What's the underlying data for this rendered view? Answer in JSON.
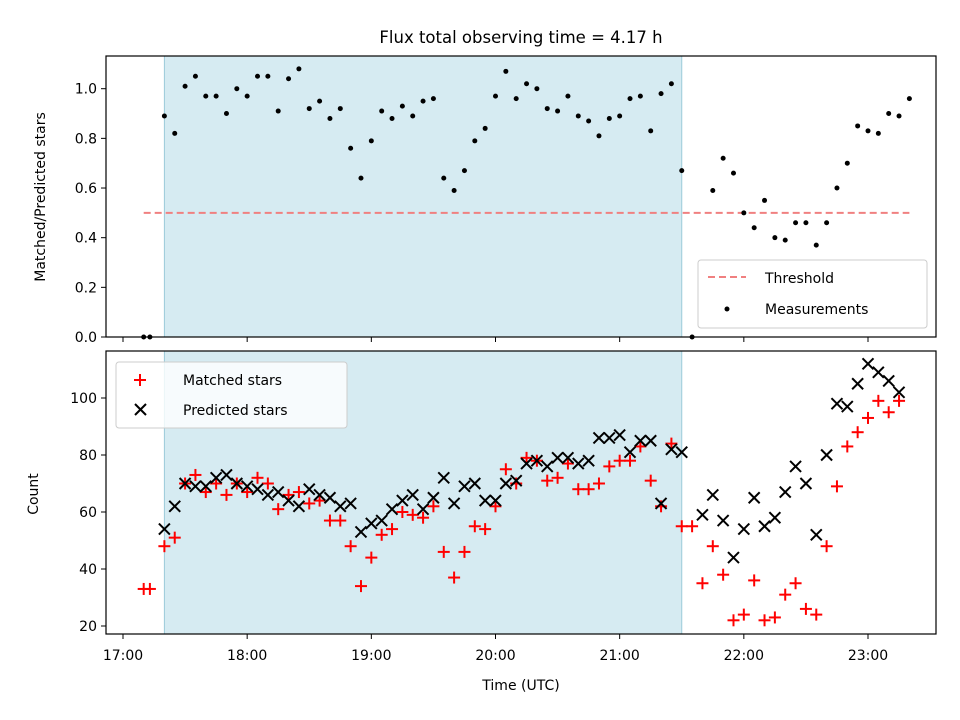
{
  "chart_data": [
    {
      "type": "scatter",
      "title": "Flux total observing time = 4.17 h",
      "xlabel": "",
      "ylabel": "Matched/Predicted stars",
      "xlim": [
        "17:00",
        "23:30"
      ],
      "ylim": [
        0,
        1.13
      ],
      "yticks": [
        "0.0",
        "0.2",
        "0.4",
        "0.6",
        "0.8",
        "1.0"
      ],
      "shaded_region": {
        "start": "17:20",
        "end": "21:30",
        "color": "#add8e6"
      },
      "threshold": {
        "name": "Threshold",
        "value": 0.5,
        "start": "17:10",
        "end": "23:20",
        "color": "#f08080"
      },
      "legend": {
        "position": "bottom-right",
        "entries": [
          "Threshold",
          "Measurements"
        ]
      },
      "series": [
        {
          "name": "Measurements",
          "color": "#000000",
          "marker": "dot",
          "points": [
            [
              "17:10",
              0.0
            ],
            [
              "17:13",
              0.0
            ],
            [
              "17:20",
              0.89
            ],
            [
              "17:25",
              0.82
            ],
            [
              "17:30",
              1.01
            ],
            [
              "17:35",
              1.05
            ],
            [
              "17:40",
              0.97
            ],
            [
              "17:45",
              0.97
            ],
            [
              "17:50",
              0.9
            ],
            [
              "17:55",
              1.0
            ],
            [
              "18:00",
              0.97
            ],
            [
              "18:05",
              1.05
            ],
            [
              "18:10",
              1.05
            ],
            [
              "18:15",
              0.91
            ],
            [
              "18:20",
              1.04
            ],
            [
              "18:25",
              1.08
            ],
            [
              "18:30",
              0.92
            ],
            [
              "18:35",
              0.95
            ],
            [
              "18:40",
              0.88
            ],
            [
              "18:45",
              0.92
            ],
            [
              "18:50",
              0.76
            ],
            [
              "18:55",
              0.64
            ],
            [
              "19:00",
              0.79
            ],
            [
              "19:05",
              0.91
            ],
            [
              "19:10",
              0.88
            ],
            [
              "19:15",
              0.93
            ],
            [
              "19:20",
              0.89
            ],
            [
              "19:25",
              0.95
            ],
            [
              "19:30",
              0.96
            ],
            [
              "19:35",
              0.64
            ],
            [
              "19:40",
              0.59
            ],
            [
              "19:45",
              0.67
            ],
            [
              "19:50",
              0.79
            ],
            [
              "19:55",
              0.84
            ],
            [
              "20:00",
              0.97
            ],
            [
              "20:05",
              1.07
            ],
            [
              "20:10",
              0.96
            ],
            [
              "20:15",
              1.02
            ],
            [
              "20:20",
              1.0
            ],
            [
              "20:25",
              0.92
            ],
            [
              "20:30",
              0.91
            ],
            [
              "20:35",
              0.97
            ],
            [
              "20:40",
              0.89
            ],
            [
              "20:45",
              0.87
            ],
            [
              "20:50",
              0.81
            ],
            [
              "20:55",
              0.88
            ],
            [
              "21:00",
              0.89
            ],
            [
              "21:05",
              0.96
            ],
            [
              "21:10",
              0.97
            ],
            [
              "21:15",
              0.83
            ],
            [
              "21:20",
              0.98
            ],
            [
              "21:25",
              1.02
            ],
            [
              "21:30",
              0.67
            ],
            [
              "21:35",
              0.0
            ],
            [
              "21:45",
              0.59
            ],
            [
              "21:50",
              0.72
            ],
            [
              "21:55",
              0.66
            ],
            [
              "22:00",
              0.5
            ],
            [
              "22:05",
              0.44
            ],
            [
              "22:10",
              0.55
            ],
            [
              "22:15",
              0.4
            ],
            [
              "22:20",
              0.39
            ],
            [
              "22:25",
              0.46
            ],
            [
              "22:30",
              0.46
            ],
            [
              "22:35",
              0.37
            ],
            [
              "22:40",
              0.46
            ],
            [
              "22:45",
              0.6
            ],
            [
              "22:50",
              0.7
            ],
            [
              "22:55",
              0.85
            ],
            [
              "23:00",
              0.83
            ],
            [
              "23:05",
              0.82
            ],
            [
              "23:10",
              0.9
            ],
            [
              "23:15",
              0.89
            ],
            [
              "23:20",
              0.96
            ]
          ]
        }
      ]
    },
    {
      "type": "scatter",
      "title": "",
      "xlabel": "Time (UTC)",
      "ylabel": "Count",
      "xlim": [
        "17:00",
        "23:30"
      ],
      "ylim": [
        18,
        117
      ],
      "xticks": [
        "17:00",
        "18:00",
        "19:00",
        "20:00",
        "21:00",
        "22:00",
        "23:00"
      ],
      "yticks": [
        "20",
        "40",
        "60",
        "80",
        "100"
      ],
      "shaded_region": {
        "start": "17:20",
        "end": "21:30",
        "color": "#add8e6"
      },
      "legend": {
        "position": "top-left",
        "entries": [
          "Matched stars",
          "Predicted stars"
        ]
      },
      "series": [
        {
          "name": "Matched stars",
          "color": "#ff0000",
          "marker": "plus",
          "points": [
            [
              "17:10",
              33
            ],
            [
              "17:13",
              33
            ],
            [
              "17:20",
              48
            ],
            [
              "17:25",
              51
            ],
            [
              "17:30",
              70
            ],
            [
              "17:35",
              73
            ],
            [
              "17:40",
              67
            ],
            [
              "17:45",
              70
            ],
            [
              "17:50",
              66
            ],
            [
              "17:55",
              70
            ],
            [
              "18:00",
              67
            ],
            [
              "18:05",
              72
            ],
            [
              "18:10",
              70
            ],
            [
              "18:15",
              61
            ],
            [
              "18:20",
              66
            ],
            [
              "18:25",
              67
            ],
            [
              "18:30",
              63
            ],
            [
              "18:35",
              64
            ],
            [
              "18:40",
              57
            ],
            [
              "18:45",
              57
            ],
            [
              "18:50",
              48
            ],
            [
              "18:55",
              34
            ],
            [
              "19:00",
              44
            ],
            [
              "19:05",
              52
            ],
            [
              "19:10",
              54
            ],
            [
              "19:15",
              60
            ],
            [
              "19:20",
              59
            ],
            [
              "19:25",
              58
            ],
            [
              "19:30",
              62
            ],
            [
              "19:35",
              46
            ],
            [
              "19:40",
              37
            ],
            [
              "19:45",
              46
            ],
            [
              "19:50",
              55
            ],
            [
              "19:55",
              54
            ],
            [
              "20:00",
              62
            ],
            [
              "20:05",
              75
            ],
            [
              "20:10",
              70
            ],
            [
              "20:15",
              79
            ],
            [
              "20:20",
              78
            ],
            [
              "20:25",
              71
            ],
            [
              "20:30",
              72
            ],
            [
              "20:35",
              77
            ],
            [
              "20:40",
              68
            ],
            [
              "20:45",
              68
            ],
            [
              "20:50",
              70
            ],
            [
              "20:55",
              76
            ],
            [
              "21:00",
              78
            ],
            [
              "21:05",
              78
            ],
            [
              "21:10",
              83
            ],
            [
              "21:15",
              71
            ],
            [
              "21:20",
              62
            ],
            [
              "21:25",
              84
            ],
            [
              "21:30",
              55
            ],
            [
              "21:35",
              55
            ],
            [
              "21:40",
              35
            ],
            [
              "21:45",
              48
            ],
            [
              "21:50",
              38
            ],
            [
              "21:55",
              22
            ],
            [
              "22:00",
              24
            ],
            [
              "22:05",
              36
            ],
            [
              "22:10",
              22
            ],
            [
              "22:15",
              23
            ],
            [
              "22:20",
              31
            ],
            [
              "22:25",
              35
            ],
            [
              "22:30",
              26
            ],
            [
              "22:35",
              24
            ],
            [
              "22:40",
              48
            ],
            [
              "22:45",
              69
            ],
            [
              "22:50",
              83
            ],
            [
              "22:55",
              88
            ],
            [
              "23:00",
              93
            ],
            [
              "23:05",
              99
            ],
            [
              "23:10",
              95
            ],
            [
              "23:15",
              99
            ]
          ]
        },
        {
          "name": "Predicted stars",
          "color": "#000000",
          "marker": "x",
          "points": [
            [
              "17:20",
              54
            ],
            [
              "17:25",
              62
            ],
            [
              "17:30",
              70
            ],
            [
              "17:35",
              69
            ],
            [
              "17:40",
              69
            ],
            [
              "17:45",
              72
            ],
            [
              "17:50",
              73
            ],
            [
              "17:55",
              70
            ],
            [
              "18:00",
              69
            ],
            [
              "18:05",
              68
            ],
            [
              "18:10",
              66
            ],
            [
              "18:15",
              67
            ],
            [
              "18:20",
              64
            ],
            [
              "18:25",
              62
            ],
            [
              "18:30",
              68
            ],
            [
              "18:35",
              66
            ],
            [
              "18:40",
              65
            ],
            [
              "18:45",
              62
            ],
            [
              "18:50",
              63
            ],
            [
              "18:55",
              53
            ],
            [
              "19:00",
              56
            ],
            [
              "19:05",
              57
            ],
            [
              "19:10",
              61
            ],
            [
              "19:15",
              64
            ],
            [
              "19:20",
              66
            ],
            [
              "19:25",
              61
            ],
            [
              "19:30",
              65
            ],
            [
              "19:35",
              72
            ],
            [
              "19:40",
              63
            ],
            [
              "19:45",
              69
            ],
            [
              "19:50",
              70
            ],
            [
              "19:55",
              64
            ],
            [
              "20:00",
              64
            ],
            [
              "20:05",
              70
            ],
            [
              "20:10",
              71
            ],
            [
              "20:15",
              77
            ],
            [
              "20:20",
              78
            ],
            [
              "20:25",
              76
            ],
            [
              "20:30",
              79
            ],
            [
              "20:35",
              79
            ],
            [
              "20:40",
              77
            ],
            [
              "20:45",
              78
            ],
            [
              "20:50",
              86
            ],
            [
              "20:55",
              86
            ],
            [
              "21:00",
              87
            ],
            [
              "21:05",
              81
            ],
            [
              "21:10",
              85
            ],
            [
              "21:15",
              85
            ],
            [
              "21:20",
              63
            ],
            [
              "21:25",
              82
            ],
            [
              "21:30",
              81
            ],
            [
              "21:40",
              59
            ],
            [
              "21:45",
              66
            ],
            [
              "21:50",
              57
            ],
            [
              "21:55",
              44
            ],
            [
              "22:00",
              54
            ],
            [
              "22:05",
              65
            ],
            [
              "22:10",
              55
            ],
            [
              "22:15",
              58
            ],
            [
              "22:20",
              67
            ],
            [
              "22:25",
              76
            ],
            [
              "22:30",
              70
            ],
            [
              "22:35",
              52
            ],
            [
              "22:40",
              80
            ],
            [
              "22:45",
              98
            ],
            [
              "22:50",
              97
            ],
            [
              "22:55",
              105
            ],
            [
              "23:00",
              112
            ],
            [
              "23:05",
              109
            ],
            [
              "23:10",
              106
            ],
            [
              "23:15",
              102
            ]
          ]
        }
      ]
    }
  ]
}
